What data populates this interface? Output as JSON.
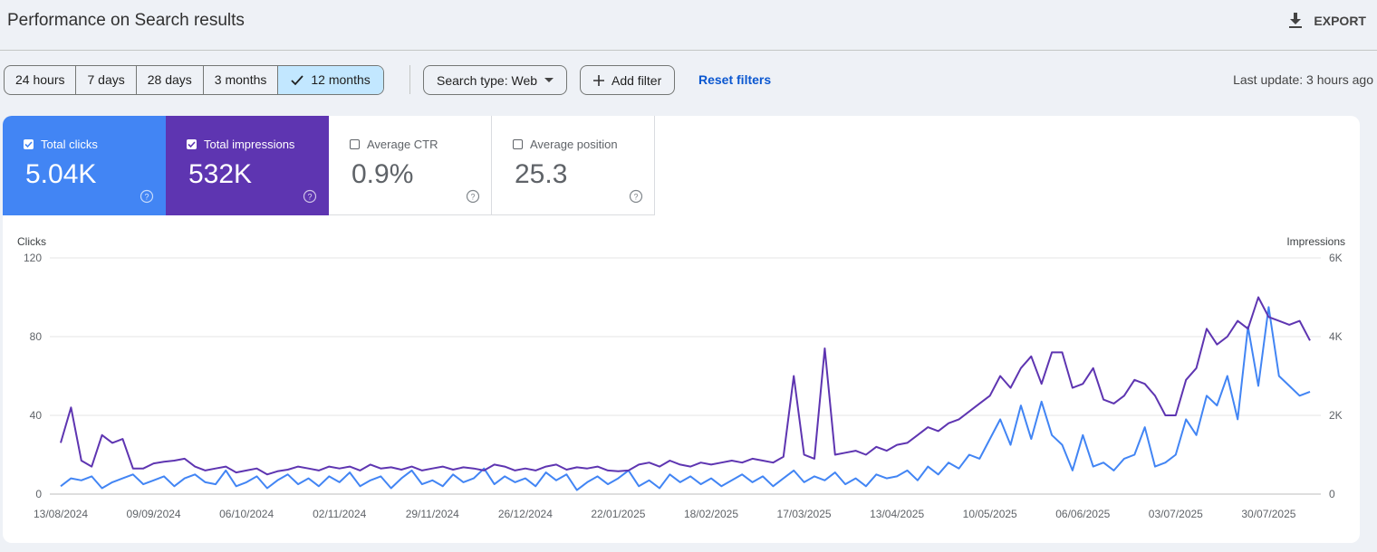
{
  "header": {
    "title": "Performance on Search results",
    "export": "EXPORT"
  },
  "date_ranges": [
    "24 hours",
    "7 days",
    "28 days",
    "3 months",
    "12 months"
  ],
  "selected_range": 4,
  "filters": {
    "search_type": "Search type: Web",
    "add_filter": "Add filter",
    "reset": "Reset filters"
  },
  "last_update": "Last update: 3 hours ago",
  "metrics": [
    {
      "label": "Total clicks",
      "value": "5.04K",
      "checked": true,
      "color": "#4285f4"
    },
    {
      "label": "Total impressions",
      "value": "532K",
      "checked": true,
      "color": "#5e35b1"
    },
    {
      "label": "Average CTR",
      "value": "0.9%",
      "checked": false,
      "color": "#ffffff"
    },
    {
      "label": "Average position",
      "value": "25.3",
      "checked": false,
      "color": "#ffffff"
    }
  ],
  "chart_data": {
    "type": "line",
    "categories": [
      "13/08/2024",
      null,
      null,
      null,
      null,
      null,
      null,
      null,
      null,
      "09/09/2024",
      null,
      null,
      null,
      null,
      null,
      null,
      null,
      null,
      "06/10/2024",
      null,
      null,
      null,
      null,
      null,
      null,
      null,
      null,
      "02/11/2024",
      null,
      null,
      null,
      null,
      null,
      null,
      null,
      null,
      "29/11/2024",
      null,
      null,
      null,
      null,
      null,
      null,
      null,
      null,
      "26/12/2024",
      null,
      null,
      null,
      null,
      null,
      null,
      null,
      null,
      "22/01/2025",
      null,
      null,
      null,
      null,
      null,
      null,
      null,
      null,
      "18/02/2025",
      null,
      null,
      null,
      null,
      null,
      null,
      null,
      null,
      "17/03/2025",
      null,
      null,
      null,
      null,
      null,
      null,
      null,
      null,
      "13/04/2025",
      null,
      null,
      null,
      null,
      null,
      null,
      null,
      null,
      "10/05/2025",
      null,
      null,
      null,
      null,
      null,
      null,
      null,
      null,
      "06/06/2025",
      null,
      null,
      null,
      null,
      null,
      null,
      null,
      null,
      "03/07/2025",
      null,
      null,
      null,
      null,
      null,
      null,
      null,
      null,
      "30/07/2025",
      null,
      null,
      null,
      null
    ],
    "series": [
      {
        "name": "Clicks",
        "color": "#4285f4",
        "values": [
          4,
          8,
          7,
          9,
          3,
          6,
          8,
          10,
          5,
          7,
          9,
          4,
          8,
          10,
          6,
          5,
          12,
          4,
          6,
          9,
          3,
          7,
          10,
          5,
          8,
          4,
          9,
          6,
          11,
          4,
          7,
          9,
          3,
          8,
          12,
          5,
          7,
          4,
          10,
          6,
          8,
          13,
          5,
          9,
          6,
          8,
          4,
          11,
          7,
          10,
          2,
          6,
          9,
          5,
          8,
          12,
          4,
          7,
          3,
          10,
          6,
          9,
          5,
          8,
          4,
          7,
          10,
          6,
          9,
          4,
          8,
          12,
          6,
          9,
          7,
          11,
          5,
          8,
          4,
          10,
          8,
          9,
          12,
          7,
          14,
          10,
          16,
          13,
          20,
          18,
          28,
          38,
          25,
          45,
          28,
          47,
          30,
          25,
          12,
          30,
          14,
          16,
          12,
          18,
          20,
          34,
          14,
          16,
          20,
          38,
          30,
          50,
          45,
          60,
          38,
          85,
          55,
          95,
          60,
          55,
          50,
          52
        ]
      },
      {
        "name": "Impressions",
        "color": "#5e35b1",
        "axis": "y2",
        "values": [
          1300,
          2200,
          850,
          700,
          1500,
          1300,
          1400,
          650,
          650,
          780,
          820,
          850,
          900,
          700,
          600,
          650,
          700,
          550,
          600,
          650,
          500,
          580,
          620,
          700,
          650,
          600,
          700,
          650,
          700,
          600,
          750,
          650,
          680,
          620,
          700,
          600,
          650,
          700,
          620,
          680,
          650,
          600,
          750,
          700,
          600,
          650,
          600,
          700,
          750,
          620,
          680,
          650,
          700,
          600,
          580,
          600,
          750,
          800,
          700,
          850,
          750,
          700,
          800,
          750,
          800,
          850,
          800,
          900,
          850,
          800,
          950,
          3000,
          1000,
          900,
          3700,
          1000,
          1050,
          1100,
          1000,
          1200,
          1100,
          1250,
          1300,
          1500,
          1700,
          1600,
          1800,
          1900,
          2100,
          2300,
          2500,
          3000,
          2700,
          3200,
          3500,
          2800,
          3600,
          3600,
          2700,
          2800,
          3200,
          2400,
          2300,
          2500,
          2900,
          2800,
          2500,
          2000,
          2000,
          2900,
          3200,
          4200,
          3800,
          4000,
          4400,
          4200,
          5000,
          4500,
          4400,
          4300,
          4400,
          3900
        ]
      }
    ],
    "ylim": [
      0,
      120
    ],
    "yticks": [
      0,
      40,
      80,
      120
    ],
    "y2lim": [
      0,
      6000
    ],
    "y2ticks": [
      {
        "value": 0,
        "label": "0"
      },
      {
        "value": 2000,
        "label": "2K"
      },
      {
        "value": 4000,
        "label": "4K"
      },
      {
        "value": 6000,
        "label": "6K"
      }
    ],
    "grid": true
  }
}
